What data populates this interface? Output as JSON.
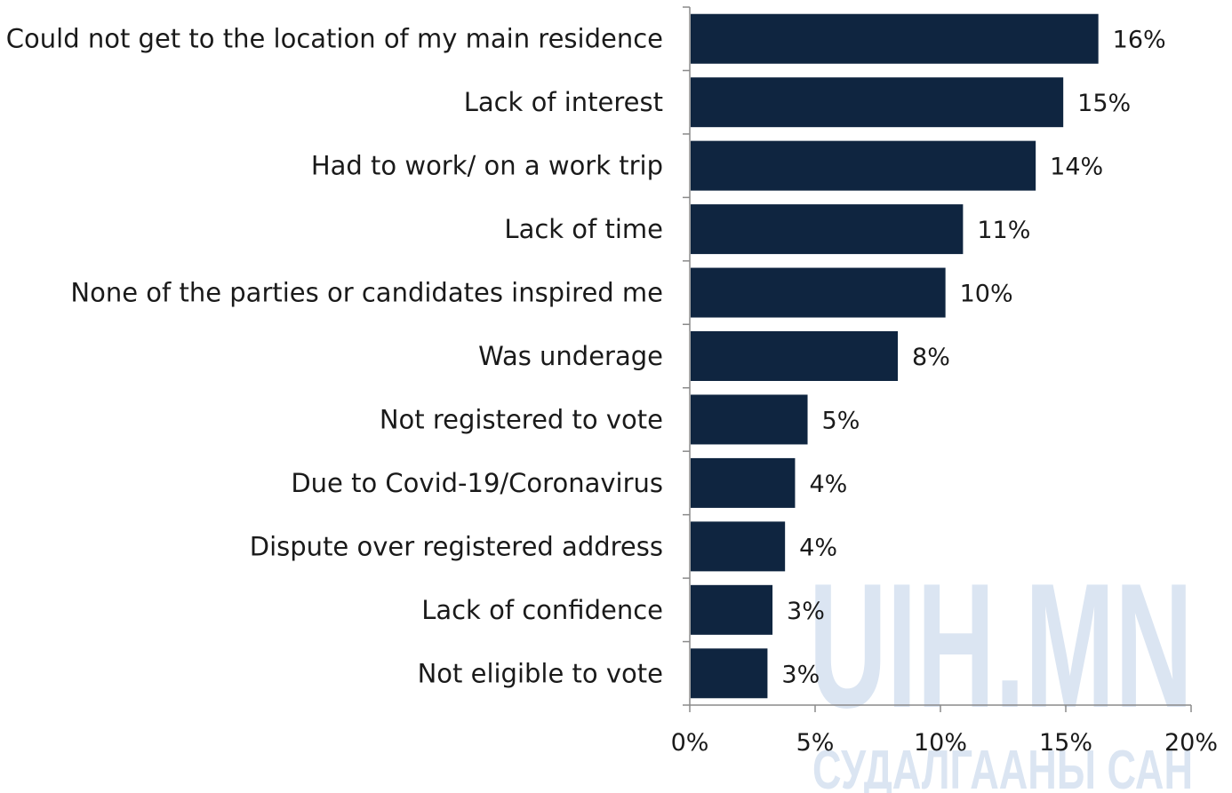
{
  "watermark": {
    "main": "UIH.MN",
    "sub": "СУДАЛГААНЫ САН"
  },
  "chart_data": {
    "type": "bar",
    "orientation": "horizontal",
    "categories": [
      "Could not get to the location of my main residence",
      "Lack of interest",
      "Had to work/ on a work trip",
      "Lack of time",
      "None of the parties or candidates inspired me",
      "Was underage",
      "Not registered to vote",
      "Due to Covid-19/Coronavirus",
      "Dispute over registered address",
      "Lack of confidence",
      "Not eligible to vote"
    ],
    "values": [
      16.3,
      14.9,
      13.8,
      10.9,
      10.2,
      8.3,
      4.7,
      4.2,
      3.8,
      3.3,
      3.1
    ],
    "value_labels": [
      "16%",
      "15%",
      "14%",
      "11%",
      "10%",
      "8%",
      "5%",
      "4%",
      "4%",
      "3%",
      "3%"
    ],
    "xticks": [
      0,
      5,
      10,
      15,
      20
    ],
    "xtick_labels": [
      "0%",
      "5%",
      "10%",
      "15%",
      "20%"
    ],
    "xlim": [
      0,
      20
    ],
    "bar_color": "#0f2540",
    "title": "",
    "xlabel": "",
    "ylabel": "",
    "grid": false,
    "legend": "none"
  }
}
